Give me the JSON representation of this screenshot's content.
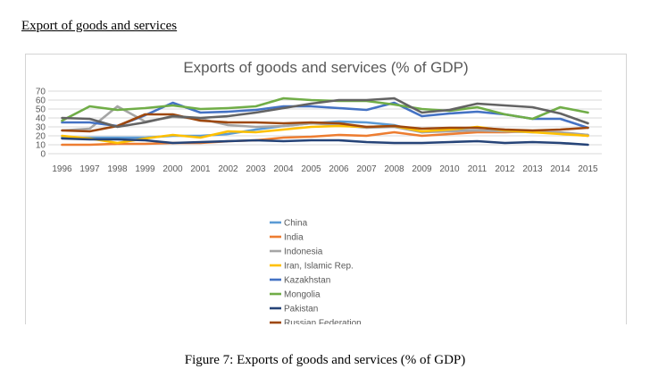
{
  "document": {
    "heading": "Export of goods and services",
    "caption": "Figure 7: Exports of goods and services (% of GDP)"
  },
  "chart_data": {
    "type": "line",
    "title": "Exports of goods and services (% of GDP)",
    "xlabel": "",
    "ylabel": "",
    "ylim": [
      0,
      70
    ],
    "yticks": [
      0,
      10,
      20,
      30,
      40,
      50,
      60,
      70
    ],
    "grid": true,
    "legend_position": "bottom",
    "categories": [
      "1996",
      "1997",
      "1998",
      "1999",
      "2000",
      "2001",
      "2002",
      "2003",
      "2004",
      "2005",
      "2006",
      "2007",
      "2008",
      "2009",
      "2010",
      "2011",
      "2012",
      "2013",
      "2014",
      "2015"
    ],
    "series": [
      {
        "name": "China",
        "color": "#5b9bd5",
        "values": [
          18,
          18,
          18,
          18,
          20,
          20,
          22,
          27,
          31,
          34,
          36,
          35,
          32,
          24,
          26,
          26,
          25,
          24,
          23,
          21
        ]
      },
      {
        "name": "India",
        "color": "#ed7d31",
        "values": [
          10,
          10,
          11,
          11,
          12,
          12,
          14,
          15,
          18,
          19,
          21,
          20,
          24,
          20,
          22,
          24,
          24,
          25,
          23,
          20
        ]
      },
      {
        "name": "Indonesia",
        "color": "#a5a5a5",
        "values": [
          26,
          28,
          53,
          36,
          41,
          39,
          32,
          30,
          31,
          34,
          32,
          29,
          30,
          24,
          25,
          26,
          25,
          24,
          24,
          21
        ]
      },
      {
        "name": "Iran, Islamic Rep.",
        "color": "#ffc000",
        "values": [
          20,
          17,
          12,
          17,
          21,
          18,
          25,
          24,
          27,
          30,
          31,
          30,
          31,
          25,
          27,
          30,
          26,
          24,
          22,
          20
        ]
      },
      {
        "name": "Kazakhstan",
        "color": "#4472c4",
        "values": [
          35,
          35,
          31,
          43,
          57,
          46,
          47,
          49,
          53,
          53,
          51,
          49,
          57,
          42,
          45,
          47,
          44,
          39,
          39,
          29
        ]
      },
      {
        "name": "Mongolia",
        "color": "#70ad47",
        "values": [
          37,
          53,
          49,
          51,
          54,
          50,
          51,
          53,
          62,
          60,
          59,
          59,
          55,
          50,
          48,
          52,
          44,
          39,
          52,
          46
        ]
      },
      {
        "name": "Pakistan",
        "color": "#264478",
        "values": [
          17,
          16,
          16,
          15,
          12,
          13,
          14,
          15,
          14,
          15,
          15,
          13,
          12,
          12,
          13,
          14,
          12,
          13,
          12,
          10
        ]
      },
      {
        "name": "Russian Federation",
        "color": "#9e480e",
        "values": [
          26,
          25,
          31,
          44,
          44,
          37,
          35,
          35,
          34,
          35,
          34,
          30,
          31,
          28,
          29,
          29,
          27,
          26,
          27,
          29
        ]
      },
      {
        "name": "",
        "color": "#636363",
        "values": [
          40,
          39,
          30,
          35,
          42,
          40,
          42,
          46,
          51,
          56,
          60,
          60,
          62,
          46,
          49,
          56,
          54,
          52,
          45,
          34
        ]
      }
    ]
  }
}
